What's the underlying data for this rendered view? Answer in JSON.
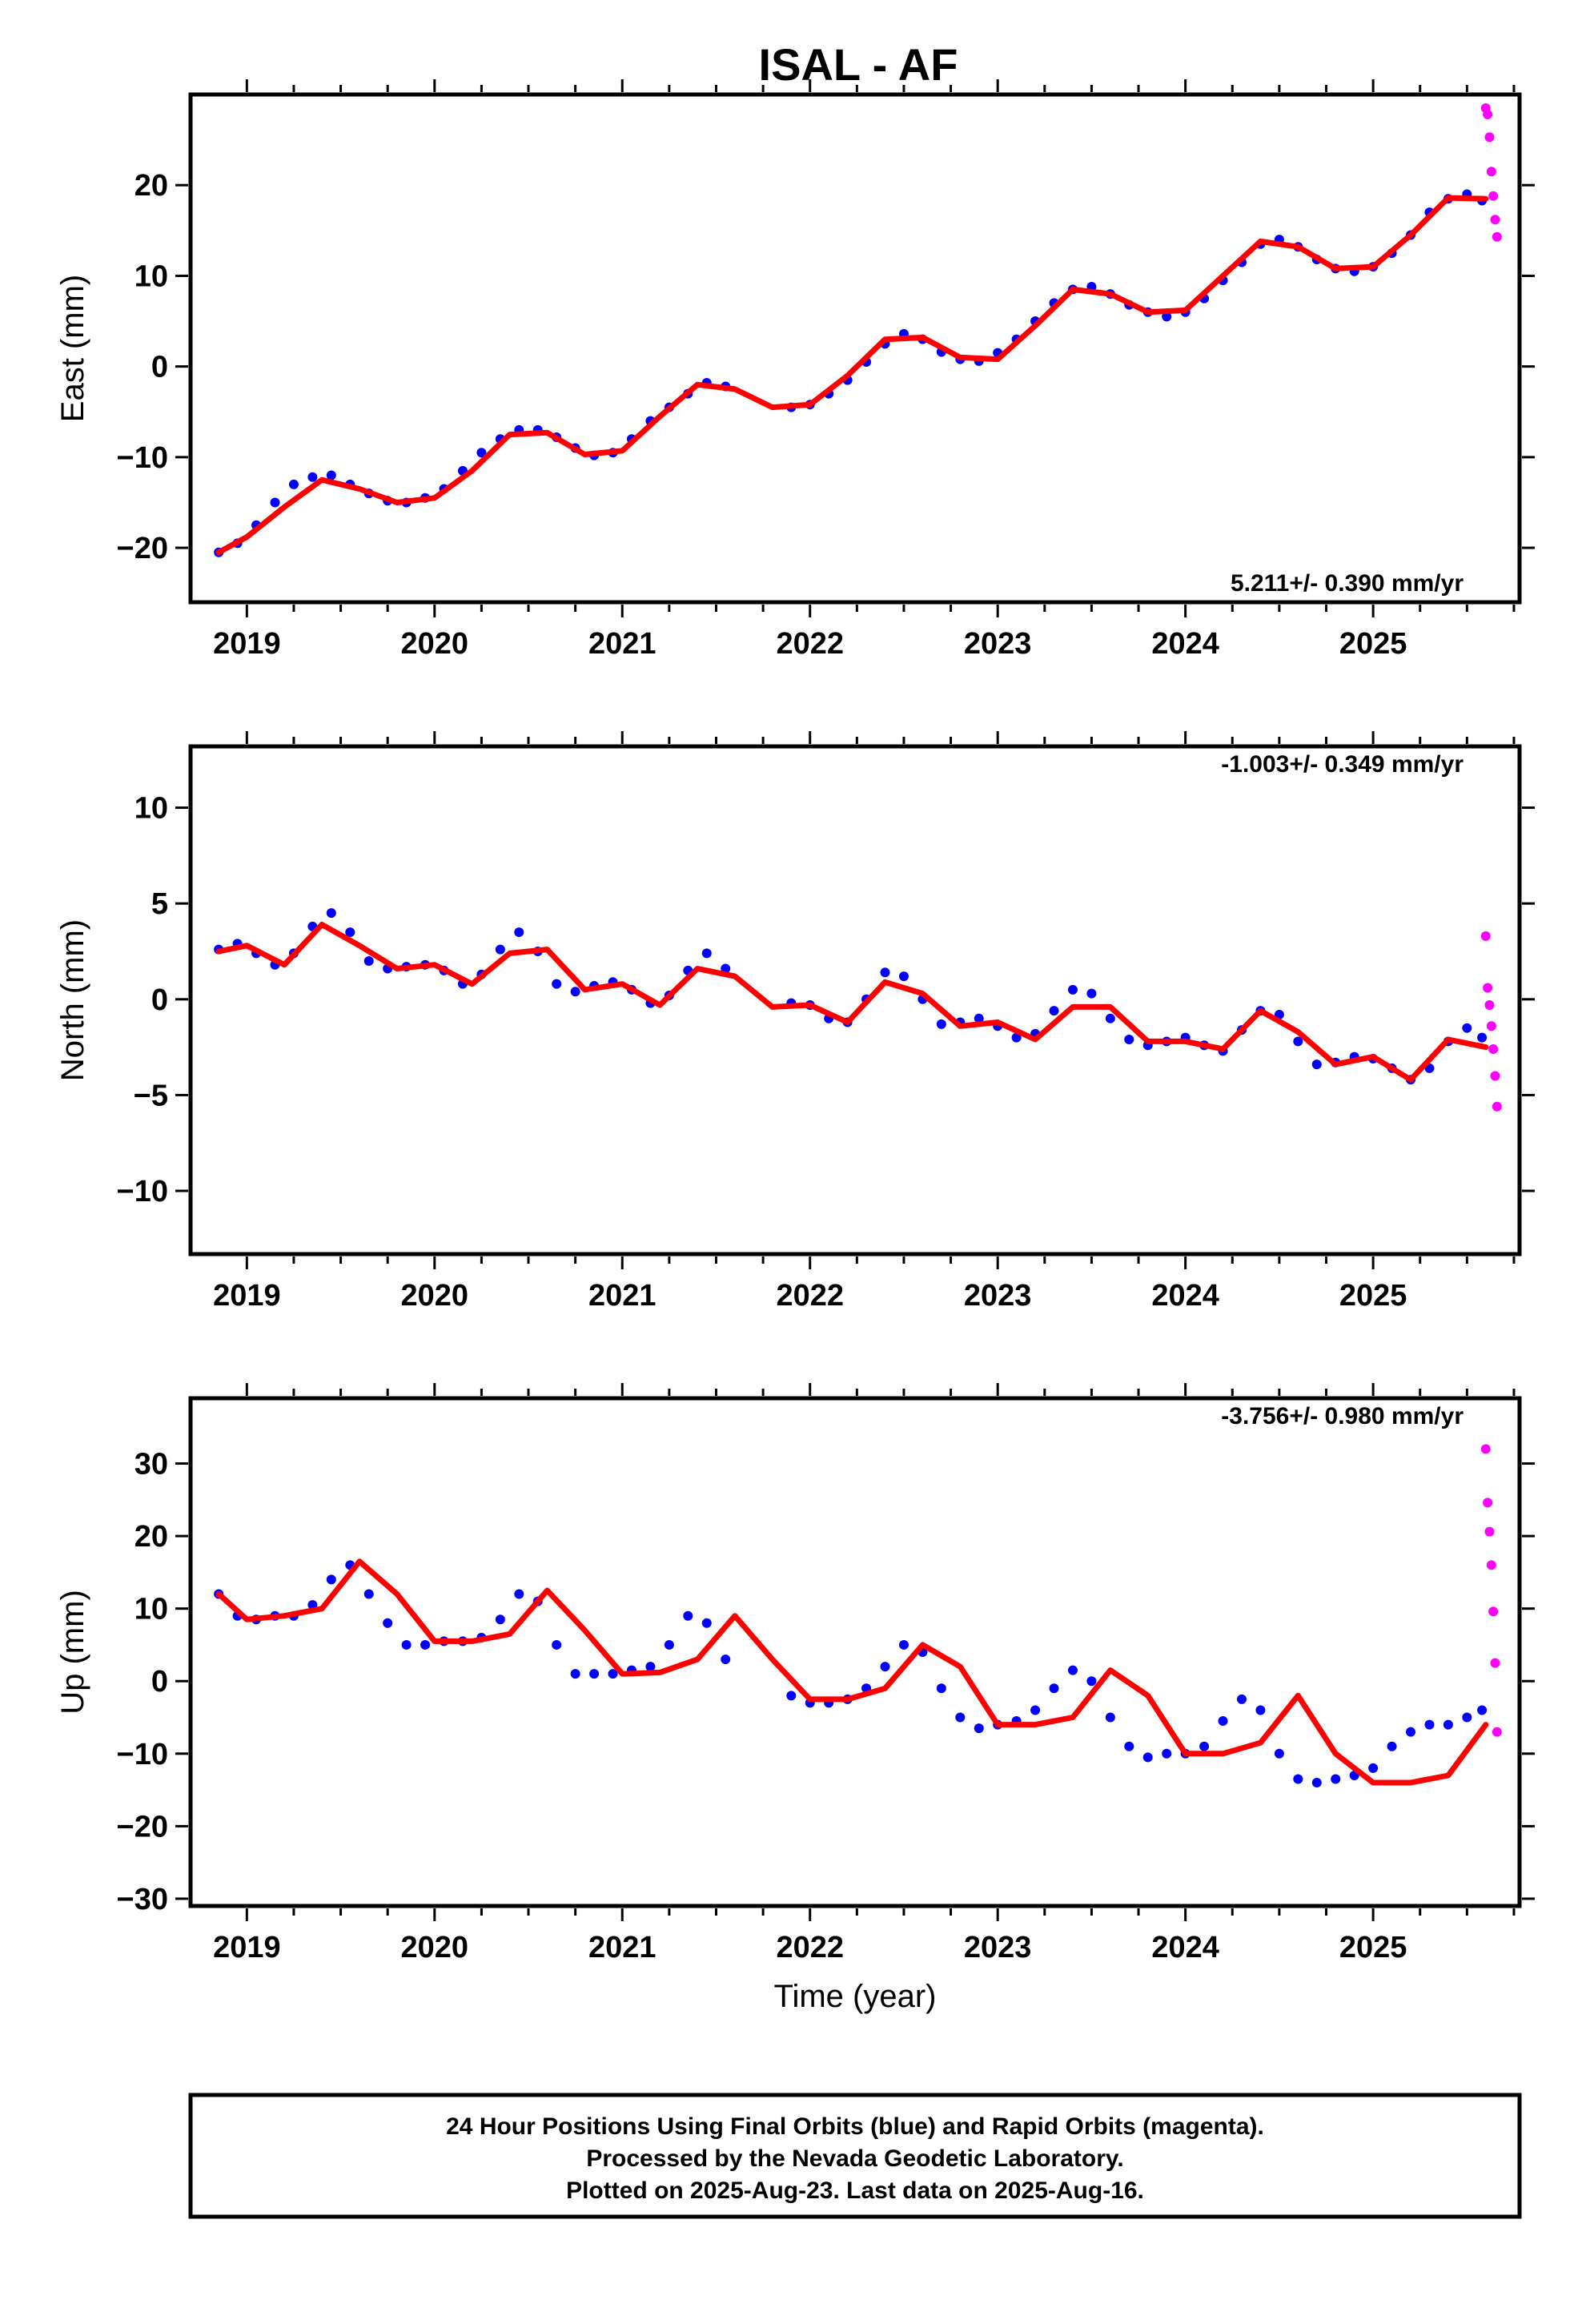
{
  "title": "ISAL - AF",
  "footer_lines": [
    "24 Hour Positions Using Final Orbits (blue) and Rapid Orbits (magenta).",
    "Processed by the Nevada Geodetic Laboratory.",
    "Plotted on 2025-Aug-23. Last data on 2025-Aug-16."
  ],
  "colors": {
    "final": "#0000ff",
    "rapid": "#ff00ff",
    "model": "#ff0000",
    "frame": "#000000"
  },
  "chart_data": [
    {
      "type": "scatter",
      "ylabel": "East (mm)",
      "xlabel": "",
      "rate_label": "5.211+/- 0.390 mm/yr",
      "rate_position": "bottom-right",
      "xlim": [
        2018.7,
        2025.78
      ],
      "ylim": [
        -26,
        30
      ],
      "x_ticks": [
        2019,
        2020,
        2021,
        2022,
        2023,
        2024,
        2025
      ],
      "y_ticks": [
        -20,
        -10,
        0,
        10,
        20
      ],
      "y_tick_labels": [
        "−20",
        "−10",
        "0",
        "10",
        "20"
      ],
      "series": [
        {
          "name": "Final Orbits",
          "style": "points",
          "color": "blue",
          "x": [
            2018.85,
            2018.95,
            2019.05,
            2019.15,
            2019.25,
            2019.35,
            2019.45,
            2019.55,
            2019.65,
            2019.75,
            2019.85,
            2019.95,
            2020.05,
            2020.15,
            2020.25,
            2020.35,
            2020.45,
            2020.55,
            2020.65,
            2020.75,
            2020.85,
            2020.95,
            2021.05,
            2021.15,
            2021.25,
            2021.35,
            2021.45,
            2021.55,
            2021.9,
            2022.0,
            2022.1,
            2022.2,
            2022.3,
            2022.4,
            2022.5,
            2022.6,
            2022.7,
            2022.8,
            2022.9,
            2023.0,
            2023.1,
            2023.2,
            2023.3,
            2023.4,
            2023.5,
            2023.6,
            2023.7,
            2023.8,
            2023.9,
            2024.0,
            2024.1,
            2024.2,
            2024.3,
            2024.4,
            2024.5,
            2024.6,
            2024.7,
            2024.8,
            2024.9,
            2025.0,
            2025.1,
            2025.2,
            2025.3,
            2025.4,
            2025.5,
            2025.58
          ],
          "y": [
            -20.5,
            -19.5,
            -17.5,
            -15,
            -13,
            -12.2,
            -12,
            -13,
            -14,
            -14.8,
            -15,
            -14.5,
            -13.5,
            -11.5,
            -9.5,
            -8,
            -7,
            -7,
            -7.8,
            -9,
            -9.8,
            -9.5,
            -8,
            -6,
            -4.5,
            -3,
            -1.8,
            -2.2,
            -4.5,
            -4.2,
            -3,
            -1.5,
            0.5,
            2.5,
            3.6,
            3,
            1.6,
            0.8,
            0.6,
            1.5,
            3,
            5,
            7,
            8.5,
            8.8,
            8,
            6.8,
            6,
            5.5,
            6,
            7.5,
            9.5,
            11.5,
            13.5,
            14,
            13.2,
            11.8,
            10.8,
            10.5,
            11,
            12.5,
            14.5,
            17,
            18.5,
            19,
            18.3
          ]
        },
        {
          "name": "Rapid Orbits",
          "style": "points",
          "color": "magenta",
          "x": [
            2025.6,
            2025.61,
            2025.62,
            2025.63,
            2025.64,
            2025.65,
            2025.66
          ],
          "y": [
            28.5,
            27.8,
            25.3,
            21.5,
            18.8,
            16.2,
            14.3
          ]
        },
        {
          "name": "Model",
          "style": "line",
          "color": "red",
          "x": [
            2018.85,
            2019.0,
            2019.2,
            2019.4,
            2019.6,
            2019.8,
            2020.0,
            2020.2,
            2020.4,
            2020.6,
            2020.8,
            2021.0,
            2021.2,
            2021.4,
            2021.6,
            2021.8,
            2022.0,
            2022.2,
            2022.4,
            2022.6,
            2022.8,
            2023.0,
            2023.2,
            2023.4,
            2023.6,
            2023.8,
            2024.0,
            2024.2,
            2024.4,
            2024.6,
            2024.8,
            2025.0,
            2025.2,
            2025.4,
            2025.6
          ],
          "y": [
            -20.5,
            -18.8,
            -15.5,
            -12.5,
            -13.5,
            -15,
            -14.5,
            -11.5,
            -7.5,
            -7.3,
            -9.7,
            -9.3,
            -5.5,
            -2,
            -2.5,
            -4.5,
            -4.2,
            -1,
            3,
            3.2,
            1,
            0.8,
            4.5,
            8.5,
            8,
            6,
            6.2,
            10,
            13.8,
            13.2,
            10.8,
            11,
            14.5,
            18.6,
            18.5
          ]
        }
      ]
    },
    {
      "type": "scatter",
      "ylabel": "North (mm)",
      "xlabel": "",
      "rate_label": "-1.003+/- 0.349 mm/yr",
      "rate_position": "top-right",
      "xlim": [
        2018.7,
        2025.78
      ],
      "ylim": [
        -13.3,
        13.2
      ],
      "x_ticks": [
        2019,
        2020,
        2021,
        2022,
        2023,
        2024,
        2025
      ],
      "y_ticks": [
        -10,
        -5,
        0,
        5,
        10
      ],
      "y_tick_labels": [
        "−10",
        "−5",
        "0",
        "5",
        "10"
      ],
      "series": [
        {
          "name": "Final Orbits",
          "style": "points",
          "color": "blue",
          "x": [
            2018.85,
            2018.95,
            2019.05,
            2019.15,
            2019.25,
            2019.35,
            2019.45,
            2019.55,
            2019.65,
            2019.75,
            2019.85,
            2019.95,
            2020.05,
            2020.15,
            2020.25,
            2020.35,
            2020.45,
            2020.55,
            2020.65,
            2020.75,
            2020.85,
            2020.95,
            2021.05,
            2021.15,
            2021.25,
            2021.35,
            2021.45,
            2021.55,
            2021.9,
            2022.0,
            2022.1,
            2022.2,
            2022.3,
            2022.4,
            2022.5,
            2022.6,
            2022.7,
            2022.8,
            2022.9,
            2023.0,
            2023.1,
            2023.2,
            2023.3,
            2023.4,
            2023.5,
            2023.6,
            2023.7,
            2023.8,
            2023.9,
            2024.0,
            2024.1,
            2024.2,
            2024.3,
            2024.4,
            2024.5,
            2024.6,
            2024.7,
            2024.8,
            2024.9,
            2025.0,
            2025.1,
            2025.2,
            2025.3,
            2025.4,
            2025.5,
            2025.58
          ],
          "y": [
            2.6,
            2.9,
            2.4,
            1.8,
            2.4,
            3.8,
            4.5,
            3.5,
            2,
            1.6,
            1.7,
            1.8,
            1.5,
            0.8,
            1.3,
            2.6,
            3.5,
            2.5,
            0.8,
            0.4,
            0.7,
            0.9,
            0.5,
            -0.2,
            0.2,
            1.5,
            2.4,
            1.6,
            -0.2,
            -0.3,
            -1,
            -1.2,
            0,
            1.4,
            1.2,
            0,
            -1.3,
            -1.2,
            -1,
            -1.4,
            -2,
            -1.8,
            -0.6,
            0.5,
            0.3,
            -1,
            -2.1,
            -2.4,
            -2.2,
            -2,
            -2.4,
            -2.7,
            -1.6,
            -0.6,
            -0.8,
            -2.2,
            -3.4,
            -3.3,
            -3,
            -3.1,
            -3.6,
            -4.2,
            -3.6,
            -2.2,
            -1.5,
            -2
          ]
        },
        {
          "name": "Rapid Orbits",
          "style": "points",
          "color": "magenta",
          "x": [
            2025.6,
            2025.61,
            2025.62,
            2025.63,
            2025.64,
            2025.65,
            2025.66
          ],
          "y": [
            3.3,
            0.6,
            -0.3,
            -1.4,
            -2.6,
            -4,
            -5.6
          ]
        },
        {
          "name": "Model",
          "style": "line",
          "color": "red",
          "x": [
            2018.85,
            2019.0,
            2019.2,
            2019.4,
            2019.6,
            2019.8,
            2020.0,
            2020.2,
            2020.4,
            2020.6,
            2020.8,
            2021.0,
            2021.2,
            2021.4,
            2021.6,
            2021.8,
            2022.0,
            2022.2,
            2022.4,
            2022.6,
            2022.8,
            2023.0,
            2023.2,
            2023.4,
            2023.6,
            2023.8,
            2024.0,
            2024.2,
            2024.4,
            2024.6,
            2024.8,
            2025.0,
            2025.2,
            2025.4,
            2025.6
          ],
          "y": [
            2.5,
            2.8,
            1.8,
            3.9,
            2.8,
            1.6,
            1.8,
            0.8,
            2.4,
            2.6,
            0.5,
            0.8,
            -0.3,
            1.6,
            1.2,
            -0.4,
            -0.3,
            -1.2,
            0.9,
            0.3,
            -1.4,
            -1.2,
            -2.1,
            -0.4,
            -0.4,
            -2.2,
            -2.2,
            -2.6,
            -0.6,
            -1.7,
            -3.4,
            -3,
            -4.2,
            -2.1,
            -2.5
          ]
        }
      ]
    },
    {
      "type": "scatter",
      "ylabel": "Up (mm)",
      "xlabel": "Time (year)",
      "rate_label": "-3.756+/- 0.980 mm/yr",
      "rate_position": "top-right",
      "xlim": [
        2018.7,
        2025.78
      ],
      "ylim": [
        -31,
        39
      ],
      "x_ticks": [
        2019,
        2020,
        2021,
        2022,
        2023,
        2024,
        2025
      ],
      "y_ticks": [
        -30,
        -20,
        -10,
        0,
        10,
        20,
        30
      ],
      "y_tick_labels": [
        "−30",
        "−20",
        "−10",
        "0",
        "10",
        "20",
        "30"
      ],
      "series": [
        {
          "name": "Final Orbits",
          "style": "points",
          "color": "blue",
          "x": [
            2018.85,
            2018.95,
            2019.05,
            2019.15,
            2019.25,
            2019.35,
            2019.45,
            2019.55,
            2019.65,
            2019.75,
            2019.85,
            2019.95,
            2020.05,
            2020.15,
            2020.25,
            2020.35,
            2020.45,
            2020.55,
            2020.65,
            2020.75,
            2020.85,
            2020.95,
            2021.05,
            2021.15,
            2021.25,
            2021.35,
            2021.45,
            2021.55,
            2021.9,
            2022.0,
            2022.1,
            2022.2,
            2022.3,
            2022.4,
            2022.5,
            2022.6,
            2022.7,
            2022.8,
            2022.9,
            2023.0,
            2023.1,
            2023.2,
            2023.3,
            2023.4,
            2023.5,
            2023.6,
            2023.7,
            2023.8,
            2023.9,
            2024.0,
            2024.1,
            2024.2,
            2024.3,
            2024.4,
            2024.5,
            2024.6,
            2024.7,
            2024.8,
            2024.9,
            2025.0,
            2025.1,
            2025.2,
            2025.3,
            2025.4,
            2025.5,
            2025.58
          ],
          "y": [
            12,
            9,
            8.5,
            9,
            9,
            10.5,
            14,
            16,
            12,
            8,
            5,
            5,
            5.5,
            5.5,
            6,
            8.5,
            12,
            11,
            5,
            1,
            1,
            1,
            1.5,
            2,
            5,
            9,
            8,
            3,
            -2,
            -3,
            -3,
            -2.5,
            -1,
            2,
            5,
            4,
            -1,
            -5,
            -6.5,
            -6,
            -5.5,
            -4,
            -1,
            1.5,
            0,
            -5,
            -9,
            -10.5,
            -10,
            -10,
            -9,
            -5.5,
            -2.5,
            -4,
            -10,
            -13.5,
            -14,
            -13.5,
            -13,
            -12,
            -9,
            -7,
            -6,
            -6,
            -5,
            -4
          ]
        },
        {
          "name": "Rapid Orbits",
          "style": "points",
          "color": "magenta",
          "x": [
            2025.6,
            2025.61,
            2025.62,
            2025.63,
            2025.64,
            2025.65,
            2025.66
          ],
          "y": [
            32,
            24.6,
            20.6,
            16,
            9.6,
            2.5,
            -7
          ]
        },
        {
          "name": "Model",
          "style": "line",
          "color": "red",
          "x": [
            2018.85,
            2019.0,
            2019.2,
            2019.4,
            2019.6,
            2019.8,
            2020.0,
            2020.2,
            2020.4,
            2020.6,
            2020.8,
            2021.0,
            2021.2,
            2021.4,
            2021.6,
            2021.8,
            2022.0,
            2022.2,
            2022.4,
            2022.6,
            2022.8,
            2023.0,
            2023.2,
            2023.4,
            2023.6,
            2023.8,
            2024.0,
            2024.2,
            2024.4,
            2024.6,
            2024.8,
            2025.0,
            2025.2,
            2025.4,
            2025.6
          ],
          "y": [
            12,
            8.5,
            9,
            10,
            16.5,
            12,
            5.5,
            5.5,
            6.5,
            12.5,
            7,
            1,
            1.2,
            3,
            9,
            3,
            -2.5,
            -2.5,
            -1,
            5,
            2,
            -6,
            -6,
            -5,
            1.5,
            -2,
            -10,
            -10,
            -8.5,
            -2,
            -10,
            -14,
            -14,
            -13,
            -6
          ]
        }
      ]
    }
  ]
}
